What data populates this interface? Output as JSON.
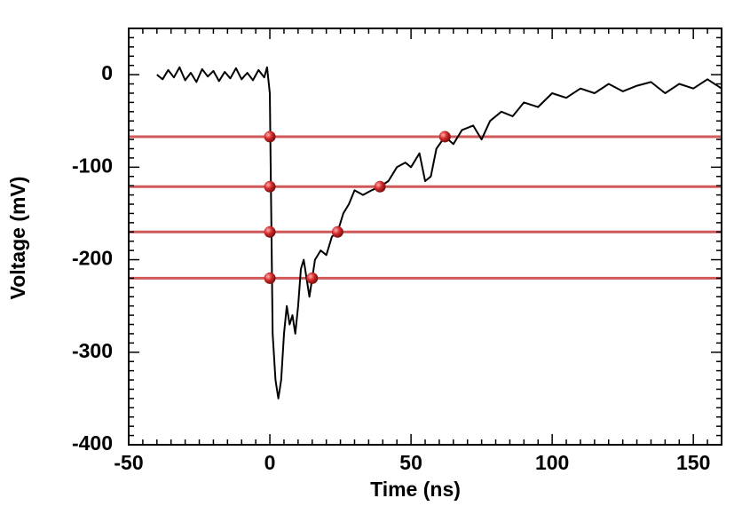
{
  "chart_data": {
    "type": "line",
    "x_label": "Time (ns)",
    "y_label": "Voltage (mV)",
    "xlim": [
      -50,
      160
    ],
    "ylim": [
      -400,
      50
    ],
    "xticks": [
      -50,
      0,
      50,
      100,
      150
    ],
    "yticks": [
      -400,
      -300,
      -200,
      -100,
      0
    ],
    "series": [
      {
        "color": "#000000",
        "x": [
          -40,
          -38,
          -36,
          -34,
          -32,
          -30,
          -28,
          -26,
          -24,
          -22,
          -20,
          -18,
          -16,
          -14,
          -12,
          -10,
          -8,
          -6,
          -4,
          -2,
          -1,
          0,
          0.5,
          1,
          2,
          3,
          4,
          5,
          6,
          7,
          8,
          9,
          10,
          11,
          12,
          13,
          14,
          15,
          16,
          18,
          20,
          22,
          24,
          26,
          28,
          30,
          33,
          36,
          39,
          42,
          45,
          48,
          50,
          53,
          55,
          57,
          59,
          62,
          65,
          68,
          72,
          75,
          78,
          82,
          86,
          90,
          95,
          100,
          105,
          110,
          115,
          120,
          125,
          130,
          135,
          140,
          145,
          150,
          155,
          160
        ],
        "values": [
          0,
          -5,
          5,
          -3,
          8,
          -6,
          2,
          -8,
          6,
          -2,
          4,
          -7,
          3,
          -4,
          7,
          -5,
          2,
          -6,
          5,
          -3,
          8,
          -20,
          -150,
          -280,
          -330,
          -350,
          -330,
          -280,
          -250,
          -270,
          -260,
          -280,
          -250,
          -210,
          -200,
          -220,
          -240,
          -220,
          -200,
          -190,
          -195,
          -175,
          -170,
          -150,
          -140,
          -125,
          -130,
          -125,
          -121,
          -115,
          -100,
          -95,
          -100,
          -85,
          -115,
          -110,
          -80,
          -67,
          -75,
          -60,
          -55,
          -70,
          -50,
          -40,
          -45,
          -30,
          -35,
          -20,
          -25,
          -15,
          -20,
          -10,
          -18,
          -12,
          -8,
          -20,
          -10,
          -15,
          -5,
          -15
        ]
      }
    ],
    "thresholds": {
      "color": "#c83c3c",
      "values": [
        -67,
        -121,
        -170,
        -220
      ]
    },
    "points": {
      "color": "#d42a2a",
      "x": [
        0,
        62,
        0,
        39,
        0,
        24,
        0,
        15
      ],
      "values": [
        -67,
        -67,
        -121,
        -121,
        -170,
        -170,
        -220,
        -220
      ]
    }
  }
}
